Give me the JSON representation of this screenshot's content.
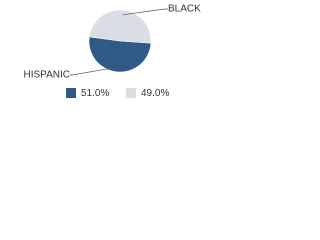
{
  "chart_data": {
    "type": "pie",
    "categories": [
      "HISPANIC",
      "BLACK"
    ],
    "values": [
      51.0,
      49.0
    ],
    "value_labels": [
      "51.0%",
      "49.0%"
    ],
    "colors": [
      "#2f5a87",
      "#d9dee5"
    ]
  }
}
